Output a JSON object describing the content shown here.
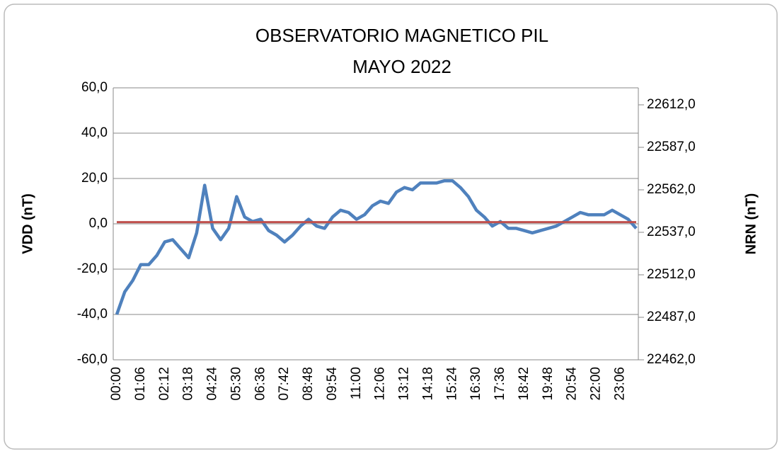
{
  "chart_data": {
    "type": "line",
    "title": "OBSERVATORIO MAGNETICO PIL",
    "subtitle": "MAYO 2022",
    "y_label": "VDD (nT)",
    "y2_label": "NRN (nT)",
    "categories": [
      "00:00",
      null,
      null,
      "01:06",
      null,
      null,
      "02:12",
      null,
      null,
      "03:18",
      null,
      null,
      "04:24",
      null,
      null,
      "05:30",
      null,
      null,
      "06:36",
      null,
      null,
      "07:42",
      null,
      null,
      "08:48",
      null,
      null,
      "09:54",
      null,
      null,
      "11:00",
      null,
      null,
      "12:06",
      null,
      null,
      "13:12",
      null,
      null,
      "14:18",
      null,
      null,
      "15:24",
      null,
      null,
      "16:30",
      null,
      null,
      "17:36",
      null,
      null,
      "18:42",
      null,
      null,
      "19:48",
      null,
      null,
      "20:54",
      null,
      null,
      "22:00",
      null,
      null,
      "23:06",
      null,
      null
    ],
    "series": [
      {
        "color": "#4f81bd",
        "values": [
          -40,
          -30,
          -25,
          -18,
          -18,
          -14,
          -8,
          -7,
          -11,
          -15,
          -4,
          17,
          -2,
          -7,
          -2,
          12,
          3,
          1,
          2,
          -3,
          -5,
          -8,
          -5,
          -1,
          2,
          -1,
          -2,
          3,
          6,
          5,
          2,
          4,
          8,
          10,
          9,
          14,
          16,
          15,
          18,
          18,
          18,
          19,
          19,
          16,
          12,
          6,
          3,
          -1,
          1,
          -2,
          -2,
          -3,
          -4,
          -3,
          -2,
          -1,
          1,
          3,
          5,
          4,
          4,
          4,
          6,
          4,
          2,
          -2
        ]
      },
      {
        "color": "#c0504d",
        "axis": "y2",
        "values": [
          22543,
          22543,
          22543,
          22543,
          22543,
          22543,
          22543,
          22543,
          22543,
          22543,
          22543,
          22543,
          22543,
          22543,
          22543,
          22543,
          22543,
          22543,
          22543,
          22543,
          22543,
          22543,
          22543,
          22543,
          22543,
          22543,
          22543,
          22543,
          22543,
          22543,
          22543,
          22543,
          22543,
          22543,
          22543,
          22543,
          22543,
          22543,
          22543,
          22543,
          22543,
          22543,
          22543,
          22543,
          22543,
          22543,
          22543,
          22543,
          22543,
          22543,
          22543,
          22543,
          22543,
          22543,
          22543,
          22543,
          22543,
          22543,
          22543,
          22543,
          22543,
          22543,
          22543,
          22543,
          22543,
          22543
        ]
      }
    ],
    "ylim": [
      -60,
      60
    ],
    "yticks": [
      {
        "value": -60,
        "label": "-60,0"
      },
      {
        "value": -40,
        "label": "-40,0"
      },
      {
        "value": -20,
        "label": "-20,0"
      },
      {
        "value": 0,
        "label": "0,0"
      },
      {
        "value": 20,
        "label": "20,0"
      },
      {
        "value": 40,
        "label": "40,0"
      },
      {
        "value": 60,
        "label": "60,0"
      }
    ],
    "y2lim": [
      22462,
      22622
    ],
    "y2ticks": [
      {
        "value": 22462,
        "label": "22462,0"
      },
      {
        "value": 22487,
        "label": "22487,0"
      },
      {
        "value": 22512,
        "label": "22512,0"
      },
      {
        "value": 22537,
        "label": "22537,0"
      },
      {
        "value": 22562,
        "label": "22562,0"
      },
      {
        "value": 22587,
        "label": "22587,0"
      },
      {
        "value": 22612,
        "label": "22612,0"
      }
    ],
    "grid": true
  }
}
